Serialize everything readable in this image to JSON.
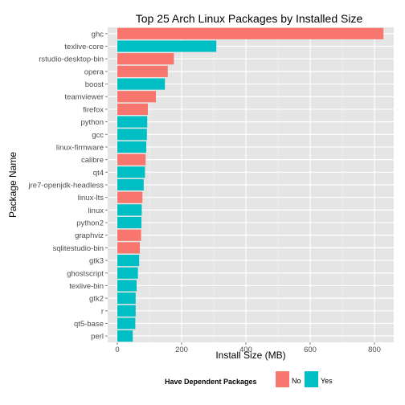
{
  "chart_data": {
    "type": "bar",
    "orientation": "horizontal",
    "title": "Top 25 Arch Linux Packages by Installed Size",
    "xlabel": "Install Size (MB)",
    "ylabel": "Package Name",
    "xlim": [
      -30,
      860
    ],
    "xticks": [
      0,
      200,
      400,
      600,
      800
    ],
    "grid": true,
    "legend": {
      "title": "Have Dependent Packages",
      "position": "bottom",
      "entries": [
        {
          "label": "No",
          "color": "#F8766D"
        },
        {
          "label": "Yes",
          "color": "#00BFC4"
        }
      ]
    },
    "bars": [
      {
        "name": "ghc",
        "value": 828,
        "dependent": "No"
      },
      {
        "name": "texlive-core",
        "value": 308,
        "dependent": "Yes"
      },
      {
        "name": "rstudio-desktop-bin",
        "value": 176,
        "dependent": "No"
      },
      {
        "name": "opera",
        "value": 157,
        "dependent": "No"
      },
      {
        "name": "boost",
        "value": 148,
        "dependent": "Yes"
      },
      {
        "name": "teamviewer",
        "value": 120,
        "dependent": "No"
      },
      {
        "name": "firefox",
        "value": 95,
        "dependent": "No"
      },
      {
        "name": "python",
        "value": 93,
        "dependent": "Yes"
      },
      {
        "name": "gcc",
        "value": 92,
        "dependent": "Yes"
      },
      {
        "name": "linux-firmware",
        "value": 90,
        "dependent": "Yes"
      },
      {
        "name": "calibre",
        "value": 88,
        "dependent": "No"
      },
      {
        "name": "qt4",
        "value": 86,
        "dependent": "Yes"
      },
      {
        "name": "jre7-openjdk-headless",
        "value": 82,
        "dependent": "Yes"
      },
      {
        "name": "linux-lts",
        "value": 78,
        "dependent": "No"
      },
      {
        "name": "linux",
        "value": 76,
        "dependent": "Yes"
      },
      {
        "name": "python2",
        "value": 75,
        "dependent": "Yes"
      },
      {
        "name": "graphviz",
        "value": 74,
        "dependent": "No"
      },
      {
        "name": "sqlitestudio-bin",
        "value": 70,
        "dependent": "No"
      },
      {
        "name": "gtk3",
        "value": 68,
        "dependent": "Yes"
      },
      {
        "name": "ghostscript",
        "value": 64,
        "dependent": "Yes"
      },
      {
        "name": "texlive-bin",
        "value": 60,
        "dependent": "Yes"
      },
      {
        "name": "gtk2",
        "value": 57,
        "dependent": "Yes"
      },
      {
        "name": "r",
        "value": 57,
        "dependent": "Yes"
      },
      {
        "name": "qt5-base",
        "value": 56,
        "dependent": "Yes"
      },
      {
        "name": "perl",
        "value": 48,
        "dependent": "Yes"
      }
    ]
  }
}
